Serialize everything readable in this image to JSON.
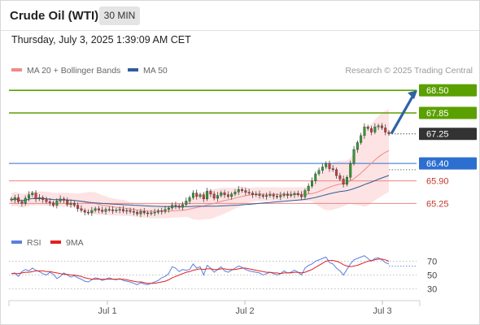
{
  "header": {
    "title": "Crude Oil (WTI)",
    "timeframe": "30 MIN",
    "datetime": "Thursday, July 3, 2025 1:39:09 AM CET"
  },
  "legend": {
    "items": [
      {
        "label": "MA 20 + Bollinger Bands",
        "color": "#f08a8a"
      },
      {
        "label": "MA 50",
        "color": "#2f5d9a"
      }
    ],
    "credit": "Research © 2025 Trading Central"
  },
  "colors": {
    "bull_candle": "#2e9e2e",
    "bear_candle": "#d23a3a",
    "resistance": "#5aa000",
    "pivot": "#2d6fd0",
    "support": "#e88888",
    "current": "#333333",
    "arrow": "#2f62a6",
    "band": "#fde3e3",
    "rsi": "#5b7fe0",
    "rsi_ma": "#e02020"
  },
  "chart_data": {
    "type": "candlestick",
    "x_ticks": [
      "Jul 1",
      "Jul 2",
      "Jul 3"
    ],
    "ylim": [
      64.7,
      68.9
    ],
    "levels": [
      {
        "value": 68.5,
        "label": "68.50",
        "kind": "resistance"
      },
      {
        "value": 67.85,
        "label": "67.85",
        "kind": "resistance"
      },
      {
        "value": 67.25,
        "label": "67.25",
        "kind": "current"
      },
      {
        "value": 66.4,
        "label": "66.40",
        "kind": "pivot"
      },
      {
        "value": 65.9,
        "label": "65.90",
        "kind": "support"
      },
      {
        "value": 65.25,
        "label": "65.25",
        "kind": "support"
      }
    ],
    "arrow": {
      "from": 67.25,
      "to": 68.5
    },
    "closes": [
      65.35,
      65.42,
      65.3,
      65.25,
      65.4,
      65.5,
      65.55,
      65.38,
      65.42,
      65.36,
      65.3,
      65.27,
      65.2,
      65.32,
      65.38,
      65.34,
      65.22,
      65.26,
      65.2,
      65.1,
      65.05,
      65.0,
      64.98,
      65.05,
      65.1,
      65.06,
      65.02,
      65.08,
      65.07,
      65.04,
      65.06,
      65.08,
      65.03,
      65.05,
      65.02,
      65.0,
      64.95,
      65.02,
      64.98,
      64.96,
      64.98,
      65.0,
      65.04,
      65.02,
      65.08,
      65.12,
      65.2,
      65.18,
      65.14,
      65.22,
      65.32,
      65.42,
      65.55,
      65.45,
      65.5,
      65.38,
      65.6,
      65.52,
      65.4,
      65.48,
      65.56,
      65.5,
      65.45,
      65.52,
      65.58,
      65.65,
      65.62,
      65.57,
      65.55,
      65.5,
      65.52,
      65.48,
      65.45,
      65.48,
      65.5,
      65.46,
      65.44,
      65.48,
      65.52,
      65.48,
      65.5,
      65.54,
      65.5,
      65.44,
      65.62,
      65.75,
      65.9,
      66.1,
      66.2,
      66.3,
      66.4,
      66.25,
      66.22,
      66.05,
      65.95,
      65.8,
      66.0,
      66.4,
      66.8,
      67.0,
      67.2,
      67.45,
      67.4,
      67.3,
      67.45,
      67.48,
      67.42,
      67.3,
      67.25
    ],
    "rsi": {
      "levels": [
        70,
        50,
        30
      ],
      "values": [
        52,
        53,
        48,
        55,
        58,
        56,
        60,
        57,
        55,
        52,
        50,
        54,
        51,
        45,
        48,
        53,
        50,
        47,
        49,
        46,
        44,
        41,
        40,
        43,
        46,
        45,
        42,
        44,
        46,
        44,
        43,
        45,
        42,
        41,
        40,
        38,
        36,
        39,
        37,
        36,
        38,
        40,
        42,
        46,
        48,
        52,
        62,
        60,
        55,
        58,
        57,
        58,
        66,
        60,
        62,
        50,
        64,
        60,
        54,
        58,
        62,
        56,
        54,
        57,
        60,
        63,
        61,
        58,
        56,
        55,
        54,
        53,
        50,
        52,
        54,
        52,
        50,
        52,
        56,
        53,
        54,
        57,
        54,
        50,
        60,
        64,
        66,
        70,
        72,
        74,
        76,
        68,
        66,
        60,
        56,
        50,
        58,
        66,
        72,
        74,
        76,
        78,
        74,
        70,
        74,
        75,
        72,
        68,
        66
      ],
      "ma": [
        52,
        52,
        52,
        53,
        54,
        54,
        55,
        56,
        56,
        56,
        55,
        55,
        54,
        53,
        52,
        51,
        51,
        50,
        50,
        49,
        48,
        46,
        45,
        44,
        44,
        44,
        44,
        44,
        44,
        44,
        44,
        44,
        44,
        43,
        42,
        41,
        40,
        40,
        39,
        38,
        38,
        38,
        39,
        40,
        41,
        43,
        46,
        48,
        50,
        52,
        54,
        55,
        57,
        58,
        59,
        58,
        59,
        59,
        58,
        58,
        59,
        59,
        58,
        58,
        58,
        59,
        60,
        60,
        59,
        58,
        57,
        56,
        55,
        54,
        54,
        53,
        53,
        52,
        53,
        53,
        53,
        54,
        54,
        53,
        54,
        56,
        58,
        61,
        64,
        67,
        70,
        71,
        71,
        70,
        68,
        65,
        63,
        62,
        63,
        64,
        66,
        68,
        70,
        71,
        72,
        73,
        73,
        72,
        70
      ]
    },
    "rsi_legend": [
      {
        "label": "RSI",
        "color": "#5b7fe0"
      },
      {
        "label": "9MA",
        "color": "#e02020"
      }
    ]
  }
}
